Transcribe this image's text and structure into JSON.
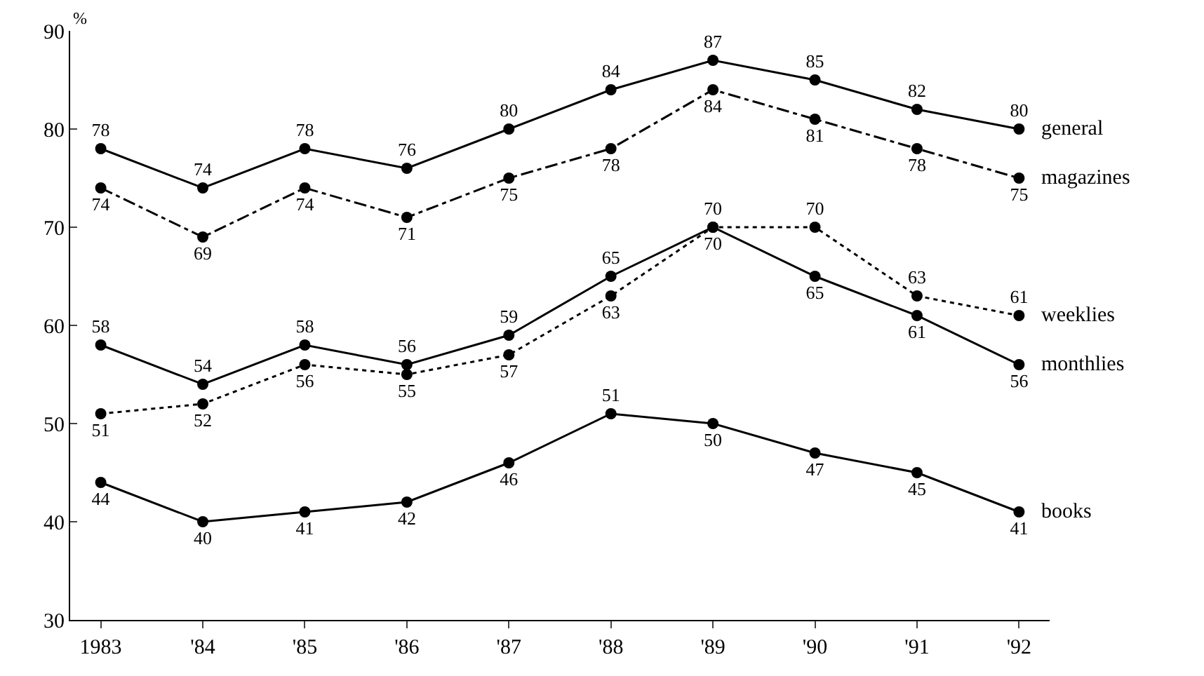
{
  "chart_data": {
    "type": "line",
    "ylabel": "%",
    "categories": [
      "1983",
      "'84",
      "'85",
      "'86",
      "'87",
      "'88",
      "'89",
      "'90",
      "'91",
      "'92"
    ],
    "series": [
      {
        "name": "general",
        "color": "#000000",
        "line_style": "solid",
        "values": [
          78,
          74,
          78,
          76,
          80,
          84,
          87,
          85,
          82,
          80
        ]
      },
      {
        "name": "magazines",
        "color": "#000000",
        "line_style": "dashed",
        "values": [
          74,
          69,
          74,
          71,
          75,
          78,
          84,
          81,
          78,
          75
        ]
      },
      {
        "name": "weeklies",
        "color": "#000000",
        "line_style": "dotted",
        "values": [
          51,
          52,
          56,
          55,
          57,
          63,
          70,
          70,
          63,
          61
        ]
      },
      {
        "name": "monthlies",
        "color": "#000000",
        "line_style": "solid",
        "values": [
          58,
          54,
          58,
          56,
          59,
          65,
          70,
          65,
          61,
          56
        ]
      },
      {
        "name": "books",
        "color": "#000000",
        "line_style": "solid",
        "values": [
          44,
          40,
          41,
          42,
          46,
          51,
          50,
          47,
          45,
          41
        ]
      }
    ],
    "ylim": [
      30,
      90
    ],
    "yticks": [
      30,
      40,
      50,
      60,
      70,
      80,
      90
    ],
    "legend": false,
    "marker": "circle",
    "data_labels": true
  }
}
